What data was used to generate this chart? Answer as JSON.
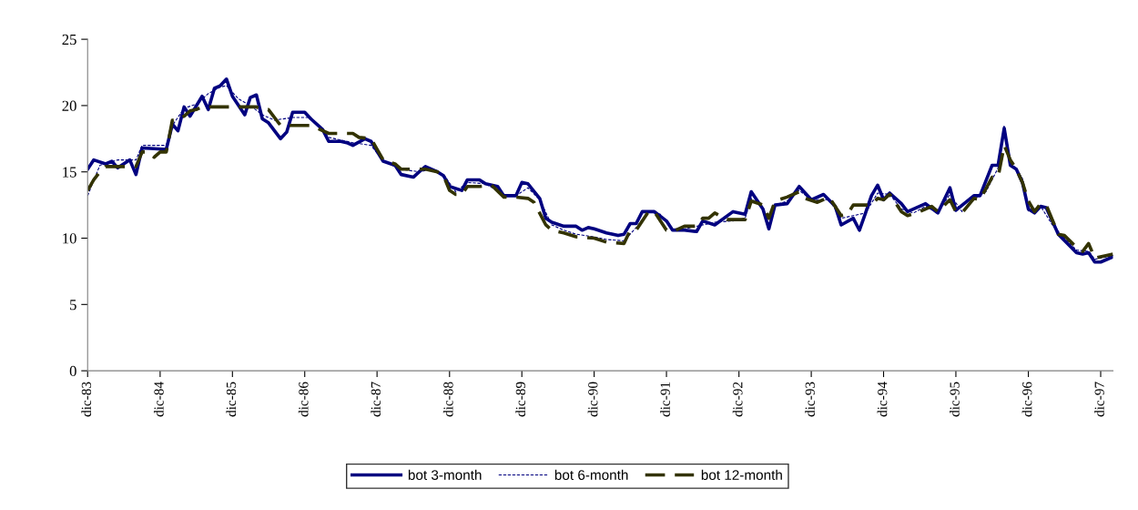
{
  "chart_data": {
    "type": "line",
    "legend": "bottom",
    "grid": false,
    "marker": "none",
    "ylim": [
      0,
      25
    ],
    "yticks": [
      0,
      5,
      10,
      15,
      20,
      25
    ],
    "xlim": [
      "1983-12",
      "1998-02"
    ],
    "xticks": [
      {
        "value": "1983-12",
        "label": "dic-83"
      },
      {
        "value": "1984-12",
        "label": "dic-84"
      },
      {
        "value": "1985-12",
        "label": "dic-85"
      },
      {
        "value": "1986-12",
        "label": "dic-86"
      },
      {
        "value": "1987-12",
        "label": "dic-87"
      },
      {
        "value": "1988-12",
        "label": "dic-88"
      },
      {
        "value": "1989-12",
        "label": "dic-89"
      },
      {
        "value": "1990-12",
        "label": "dic-90"
      },
      {
        "value": "1991-12",
        "label": "dic-91"
      },
      {
        "value": "1992-12",
        "label": "dic-92"
      },
      {
        "value": "1993-12",
        "label": "dic-93"
      },
      {
        "value": "1994-12",
        "label": "dic-94"
      },
      {
        "value": "1995-12",
        "label": "dic-95"
      },
      {
        "value": "1996-12",
        "label": "dic-96"
      },
      {
        "value": "1997-12",
        "label": "dic-97"
      }
    ],
    "series": [
      {
        "name": "bot 3-month",
        "color": "#000080",
        "line_style": "solid",
        "x": [
          "1983-12",
          "1984-01",
          "1984-03",
          "1984-04",
          "1984-05",
          "1984-07",
          "1984-08",
          "1984-09",
          "1985-01",
          "1985-02",
          "1985-03",
          "1985-04",
          "1985-05",
          "1985-07",
          "1985-08",
          "1985-09",
          "1985-10",
          "1985-11",
          "1985-12",
          "1986-02",
          "1986-03",
          "1986-04",
          "1986-05",
          "1986-06",
          "1986-08",
          "1986-09",
          "1986-10",
          "1986-12",
          "1987-01",
          "1987-03",
          "1987-04",
          "1987-06",
          "1987-07",
          "1987-08",
          "1987-10",
          "1987-11",
          "1988-01",
          "1988-03",
          "1988-04",
          "1988-06",
          "1988-07",
          "1988-08",
          "1988-10",
          "1988-11",
          "1988-12",
          "1989-02",
          "1989-03",
          "1989-05",
          "1989-06",
          "1989-08",
          "1989-09",
          "1989-11",
          "1989-12",
          "1990-01",
          "1990-03",
          "1990-04",
          "1990-05",
          "1990-07",
          "1990-09",
          "1990-10",
          "1990-11",
          "1990-12",
          "1991-02",
          "1991-04",
          "1991-05",
          "1991-06",
          "1991-07",
          "1991-08",
          "1991-10",
          "1991-12",
          "1992-01",
          "1992-03",
          "1992-05",
          "1992-06",
          "1992-08",
          "1992-11",
          "1993-01",
          "1993-02",
          "1993-04",
          "1993-05",
          "1993-06",
          "1993-08",
          "1993-10",
          "1993-12",
          "1994-02",
          "1994-04",
          "1994-05",
          "1994-07",
          "1994-08",
          "1994-09",
          "1994-10",
          "1994-11",
          "1994-12",
          "1995-01",
          "1995-03",
          "1995-04",
          "1995-07",
          "1995-09",
          "1995-11",
          "1995-12",
          "1996-03",
          "1996-04",
          "1996-06",
          "1996-07",
          "1996-08",
          "1996-09",
          "1996-10",
          "1996-11",
          "1996-12",
          "1997-01",
          "1997-02",
          "1997-03",
          "1997-05",
          "1997-08",
          "1997-09",
          "1997-10",
          "1997-11",
          "1997-12",
          "1998-02"
        ],
        "values": [
          15.2,
          15.9,
          15.6,
          15.8,
          15.3,
          15.9,
          14.8,
          16.8,
          16.7,
          18.6,
          18.1,
          19.9,
          19.2,
          20.7,
          19.7,
          21.3,
          21.5,
          22.0,
          20.7,
          19.3,
          20.6,
          20.8,
          19.0,
          18.7,
          17.5,
          18.0,
          19.5,
          19.5,
          19.0,
          18.2,
          17.3,
          17.3,
          17.2,
          17.0,
          17.5,
          17.3,
          15.8,
          15.5,
          14.8,
          14.6,
          15.0,
          15.4,
          15.0,
          14.7,
          13.9,
          13.6,
          14.4,
          14.4,
          14.1,
          13.9,
          13.2,
          13.2,
          14.2,
          14.1,
          13.0,
          11.5,
          11.2,
          10.9,
          10.9,
          10.6,
          10.8,
          10.7,
          10.4,
          10.2,
          10.3,
          11.1,
          11.1,
          12.0,
          12.0,
          11.3,
          10.6,
          10.6,
          10.5,
          11.3,
          11.0,
          12.0,
          11.8,
          13.5,
          12.2,
          10.7,
          12.5,
          12.6,
          13.9,
          12.9,
          13.3,
          12.4,
          11.0,
          11.5,
          10.6,
          11.9,
          13.2,
          14.0,
          12.9,
          13.4,
          12.6,
          12.0,
          12.6,
          11.9,
          13.8,
          12.1,
          13.2,
          13.2,
          15.5,
          15.5,
          18.3,
          15.5,
          15.2,
          14.2,
          12.2,
          11.9,
          12.4,
          12.3,
          10.3,
          8.9,
          8.8,
          8.9,
          8.2,
          8.2,
          8.6
        ]
      },
      {
        "name": "bot 6-month",
        "color": "#000080",
        "line_style": "dashed",
        "x": [
          "1983-12",
          "1984-02",
          "1984-05",
          "1984-08",
          "1984-09",
          "1985-01",
          "1985-02",
          "1985-04",
          "1985-06",
          "1985-08",
          "1985-10",
          "1985-11",
          "1986-01",
          "1986-03",
          "1986-05",
          "1986-07",
          "1986-10",
          "1987-01",
          "1987-04",
          "1987-08",
          "1987-11",
          "1988-01",
          "1988-04",
          "1988-07",
          "1988-09",
          "1988-11",
          "1989-01",
          "1989-03",
          "1989-06",
          "1989-09",
          "1989-11",
          "1990-01",
          "1990-03",
          "1990-05",
          "1990-07",
          "1990-09",
          "1990-12",
          "1991-02",
          "1991-05",
          "1991-07",
          "1991-09",
          "1991-11",
          "1992-01",
          "1992-03",
          "1992-06",
          "1992-08",
          "1992-11",
          "1993-01",
          "1993-02",
          "1993-04",
          "1993-05",
          "1993-06",
          "1993-08",
          "1993-10",
          "1993-12",
          "1994-03",
          "1994-05",
          "1994-07",
          "1994-09",
          "1994-11",
          "1995-01",
          "1995-03",
          "1995-05",
          "1995-07",
          "1995-09",
          "1995-11",
          "1996-01",
          "1996-03",
          "1996-05",
          "1996-07",
          "1996-08",
          "1996-09",
          "1996-11",
          "1996-12",
          "1997-02",
          "1997-04",
          "1997-06",
          "1997-08",
          "1997-10",
          "1997-11",
          "1997-12",
          "1998-02"
        ],
        "values": [
          13.2,
          15.5,
          15.9,
          15.9,
          17.0,
          17.0,
          18.5,
          19.8,
          20.1,
          20.9,
          21.4,
          21.5,
          20.5,
          20.0,
          19.3,
          18.9,
          19.1,
          19.1,
          17.6,
          17.2,
          17.0,
          15.8,
          15.2,
          15.0,
          15.2,
          14.8,
          13.5,
          14.2,
          14.1,
          13.3,
          13.2,
          13.8,
          12.9,
          11.0,
          10.6,
          10.3,
          10.1,
          9.9,
          9.8,
          10.8,
          12.0,
          11.8,
          10.7,
          10.7,
          11.0,
          11.2,
          11.3,
          11.5,
          13.0,
          12.3,
          11.0,
          12.5,
          12.8,
          13.6,
          12.9,
          12.9,
          11.5,
          11.7,
          11.9,
          13.4,
          13.3,
          12.2,
          11.9,
          12.4,
          11.9,
          13.3,
          12.0,
          13.0,
          13.5,
          15.3,
          18.5,
          15.8,
          14.5,
          12.0,
          12.4,
          11.0,
          10.0,
          9.1,
          9.0,
          8.4,
          8.5,
          8.7
        ]
      },
      {
        "name": "bot 12-month",
        "color": "#333300",
        "line_style": "dashed",
        "x": [
          "1983-12",
          "1984-01",
          "1984-02",
          "1984-03",
          "1984-08",
          "1984-09",
          "1984-10",
          "1984-11",
          "1984-12",
          "1985-01",
          "1985-02",
          "1985-03",
          "1985-04",
          "1985-05",
          "1985-06",
          "1985-07",
          "1986-04",
          "1986-05",
          "1986-06",
          "1986-08",
          "1987-01",
          "1987-04",
          "1987-08",
          "1987-09",
          "1987-11",
          "1987-12",
          "1988-01",
          "1988-03",
          "1988-04",
          "1988-08",
          "1988-10",
          "1988-11",
          "1988-12",
          "1989-01",
          "1989-02",
          "1989-03",
          "1989-05",
          "1989-07",
          "1989-09",
          "1989-11",
          "1990-01",
          "1990-02",
          "1990-04",
          "1990-05",
          "1990-07",
          "1990-09",
          "1990-12",
          "1991-02",
          "1991-05",
          "1991-06",
          "1991-07",
          "1991-09",
          "1991-10",
          "1991-12",
          "1992-01",
          "1992-03",
          "1992-05",
          "1992-06",
          "1992-07",
          "1992-08",
          "1992-10",
          "1993-01",
          "1993-02",
          "1993-04",
          "1993-05",
          "1993-06",
          "1993-08",
          "1993-10",
          "1993-11",
          "1994-01",
          "1994-03",
          "1994-05",
          "1994-06",
          "1994-07",
          "1994-10",
          "1994-11",
          "1994-12",
          "1995-01",
          "1995-03",
          "1995-04",
          "1995-06",
          "1995-08",
          "1995-09",
          "1995-11",
          "1995-12",
          "1996-01",
          "1996-03",
          "1996-04",
          "1996-06",
          "1996-07",
          "1996-08",
          "1996-09",
          "1996-10",
          "1996-11",
          "1996-12",
          "1997-01",
          "1997-02",
          "1997-03",
          "1997-05",
          "1997-06",
          "1997-08",
          "1997-09",
          "1997-10",
          "1997-11",
          "1998-02"
        ],
        "values": [
          13.6,
          14.4,
          15.0,
          15.4,
          15.4,
          16.5,
          16.5,
          16.1,
          16.5,
          16.5,
          18.9,
          18.9,
          19.2,
          19.6,
          19.7,
          19.9,
          19.9,
          19.7,
          19.7,
          18.5,
          18.5,
          17.9,
          17.9,
          17.6,
          17.5,
          16.7,
          15.9,
          15.6,
          15.2,
          15.2,
          15.0,
          14.7,
          13.6,
          13.3,
          13.3,
          13.9,
          13.9,
          14.0,
          13.1,
          13.1,
          13.0,
          12.7,
          11.0,
          10.6,
          10.4,
          10.1,
          10.0,
          9.7,
          9.6,
          10.6,
          10.6,
          12.0,
          12.0,
          10.6,
          10.5,
          10.9,
          10.9,
          11.5,
          11.5,
          11.9,
          11.4,
          11.4,
          12.8,
          12.5,
          11.5,
          12.8,
          13.1,
          13.5,
          13.0,
          12.7,
          13.1,
          11.7,
          11.8,
          12.5,
          12.5,
          13.0,
          12.9,
          13.3,
          12.0,
          11.7,
          12.0,
          12.4,
          12.0,
          12.9,
          12.0,
          11.9,
          13.0,
          12.9,
          14.6,
          14.6,
          17.0,
          15.9,
          15.2,
          14.2,
          12.8,
          12.0,
          12.6,
          12.5,
          10.3,
          10.2,
          9.3,
          9.0,
          9.6,
          8.5,
          8.8
        ]
      }
    ]
  }
}
